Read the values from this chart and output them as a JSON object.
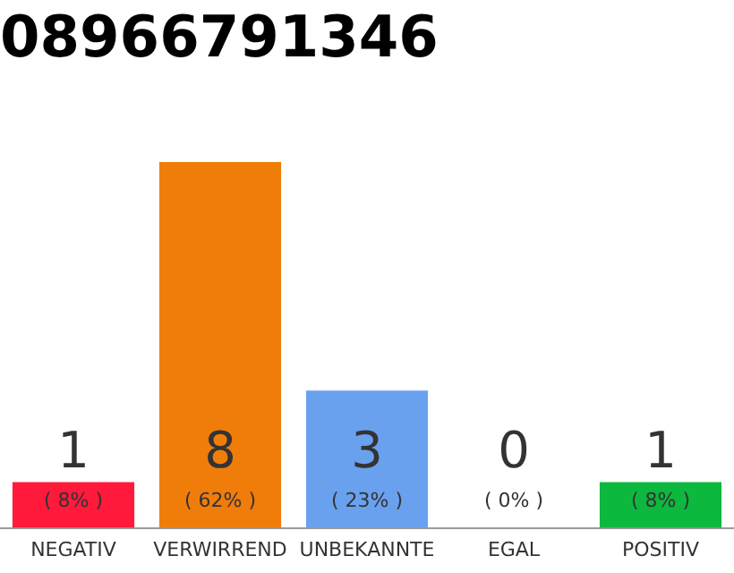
{
  "chart_data": {
    "type": "bar",
    "title": "08966791346",
    "categories": [
      "NEGATIV",
      "VERWIRREND",
      "UNBEKANNTE",
      "EGAL",
      "POSITIV"
    ],
    "values": [
      1,
      8,
      3,
      0,
      1
    ],
    "colors": [
      "#ff1a3c",
      "#f07d0a",
      "#6aa1ef",
      "#999999",
      "#0db83e"
    ],
    "value_labels": [
      "1\n( 8% )",
      "8\n( 62% )",
      "3\n( 23% )",
      "0\n( 0% )",
      "1\n( 8% )"
    ],
    "ylim": [
      0,
      8
    ],
    "tick_labels": "x",
    "grid": false,
    "legend": false
  }
}
